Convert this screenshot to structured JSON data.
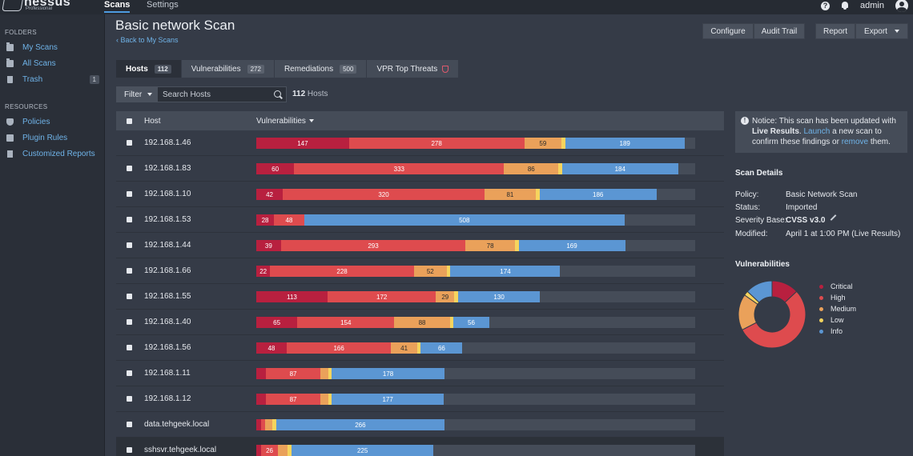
{
  "app": {
    "logo_text": "nessus",
    "logo_sub": "Professional",
    "nav": [
      "Scans",
      "Settings"
    ],
    "user": "admin",
    "help_glyph": "?"
  },
  "sidebar": {
    "folders_heading": "FOLDERS",
    "folders": [
      {
        "label": "My Scans",
        "icon": "folder-icon"
      },
      {
        "label": "All Scans",
        "icon": "folder-icon"
      },
      {
        "label": "Trash",
        "icon": "trash-icon",
        "badge": "1"
      }
    ],
    "resources_heading": "RESOURCES",
    "resources": [
      {
        "label": "Policies",
        "icon": "shield-icon"
      },
      {
        "label": "Plugin Rules",
        "icon": "puzzle-icon"
      },
      {
        "label": "Customized Reports",
        "icon": "doc-icon"
      }
    ]
  },
  "header": {
    "title": "Basic network Scan",
    "back_link": "‹ Back to My Scans",
    "buttons": {
      "configure": "Configure",
      "audit_trail": "Audit Trail",
      "report": "Report",
      "export": "Export"
    }
  },
  "tabs": [
    {
      "label": "Hosts",
      "badge": "112",
      "active": true
    },
    {
      "label": "Vulnerabilities",
      "badge": "272"
    },
    {
      "label": "Remediations",
      "badge": "500"
    },
    {
      "label": "VPR Top Threats",
      "icon": "shield-alert-icon"
    }
  ],
  "filter": {
    "label": "Filter",
    "search_placeholder": "Search Hosts",
    "count_number": "112",
    "count_label": "Hosts"
  },
  "table": {
    "headers": {
      "host": "Host",
      "vulnerabilities": "Vulnerabilities"
    },
    "colors": {
      "critical": "#b8203f",
      "high": "#de4b4e",
      "medium": "#eaa15a",
      "low": "#f6d45e",
      "info": "#5b96d3"
    },
    "rows": [
      {
        "host": "192.168.1.46",
        "critical": 147,
        "high": 278,
        "medium": 59,
        "low": 6,
        "info": 189
      },
      {
        "host": "192.168.1.83",
        "critical": 60,
        "high": 333,
        "medium": 86,
        "low": 6,
        "info": 184
      },
      {
        "host": "192.168.1.10",
        "critical": 42,
        "high": 320,
        "medium": 81,
        "low": 6,
        "info": 186
      },
      {
        "host": "192.168.1.53",
        "critical": 28,
        "high": 48,
        "medium": 0,
        "low": 0,
        "info": 508
      },
      {
        "host": "192.168.1.44",
        "critical": 39,
        "high": 293,
        "medium": 78,
        "low": 6,
        "info": 169
      },
      {
        "host": "192.168.1.66",
        "critical": 22,
        "high": 228,
        "medium": 52,
        "low": 6,
        "info": 174
      },
      {
        "host": "192.168.1.55",
        "critical": 113,
        "high": 172,
        "medium": 29,
        "low": 6,
        "info": 130
      },
      {
        "host": "192.168.1.40",
        "critical": 65,
        "high": 154,
        "medium": 88,
        "low": 6,
        "info": 56
      },
      {
        "host": "192.168.1.56",
        "critical": 48,
        "high": 166,
        "medium": 41,
        "low": 6,
        "info": 66
      },
      {
        "host": "192.168.1.11",
        "critical": 15,
        "high": 87,
        "medium": 12,
        "low": 6,
        "info": 178
      },
      {
        "host": "192.168.1.12",
        "critical": 15,
        "high": 87,
        "medium": 12,
        "low": 6,
        "info": 177
      },
      {
        "host": "data.tehgeek.local",
        "critical": 8,
        "high": 6,
        "medium": 12,
        "low": 6,
        "info": 266
      },
      {
        "host": "sshsvr.tehgeek.local",
        "critical": 8,
        "high": 26,
        "medium": 16,
        "low": 6,
        "info": 225
      }
    ]
  },
  "notice": {
    "prefix": "Notice: This scan has been updated with ",
    "bold": "Live Results",
    "mid1": ". ",
    "launch": "Launch",
    "mid2": " a new scan to confirm these findings or ",
    "remove": "remove",
    "suffix": " them."
  },
  "scan_details": {
    "title": "Scan Details",
    "policy_label": "Policy:",
    "policy": "Basic Network Scan",
    "status_label": "Status:",
    "status": "Imported",
    "severity_label": "Severity Base:",
    "severity": "CVSS v3.0",
    "modified_label": "Modified:",
    "modified": "April 1 at 1:00 PM (Live Results)"
  },
  "vuln_summary": {
    "title": "Vulnerabilities",
    "legend": [
      {
        "label": "Critical",
        "color": "#b8203f",
        "value": 12
      },
      {
        "label": "High",
        "color": "#de4b4e",
        "value": 50
      },
      {
        "label": "Medium",
        "color": "#eaa15a",
        "value": 16
      },
      {
        "label": "Low",
        "color": "#f6d45e",
        "value": 2
      },
      {
        "label": "Info",
        "color": "#5b96d3",
        "value": 12
      }
    ]
  }
}
